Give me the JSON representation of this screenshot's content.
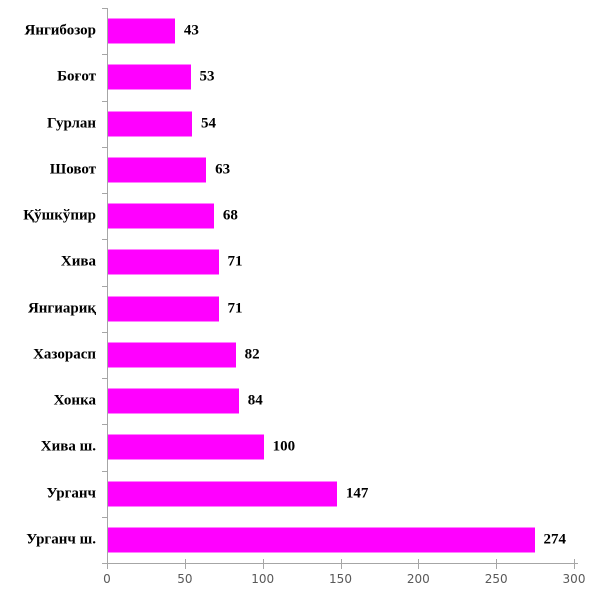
{
  "chart_data": {
    "type": "bar",
    "orientation": "horizontal",
    "title": "",
    "xlabel": "",
    "ylabel": "",
    "categories": [
      "Янгибозор",
      "Боғот",
      "Гурлан",
      "Шовот",
      "Қўшкўпир",
      "Хива",
      "Янгиариқ",
      "Хазорасп",
      "Хонка",
      "Хива ш.",
      "Урганч",
      "Урганч ш."
    ],
    "values": [
      43,
      53,
      54,
      63,
      68,
      71,
      71,
      82,
      84,
      100,
      147,
      274
    ],
    "data_labels": [
      "43",
      "53",
      "54",
      "63",
      "68",
      "71",
      "71",
      "82",
      "84",
      "100",
      "147",
      "274"
    ],
    "xlim": [
      0,
      300
    ],
    "x_ticks": [
      0,
      50,
      100,
      150,
      200,
      250,
      300
    ],
    "x_tick_labels": [
      "0",
      "50",
      "100",
      "150",
      "200",
      "250",
      "300"
    ],
    "grid": false,
    "legend": "none",
    "bar_color": "#ff00ff",
    "axis_color": "#a6a6a6",
    "tick_label_color": "#595959",
    "label_color": "#000000",
    "background_color": "#ffffff"
  }
}
